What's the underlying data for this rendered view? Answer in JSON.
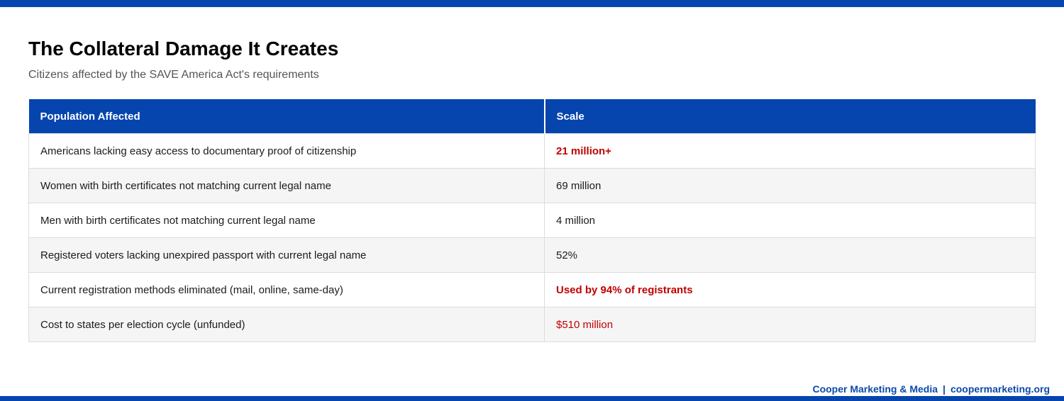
{
  "page": {
    "title": "The Collateral Damage It Creates",
    "subtitle": "Citizens affected by the SAVE America Act's requirements"
  },
  "table": {
    "headers": [
      "Population Affected",
      "Scale"
    ],
    "rows": [
      {
        "label": "Americans lacking easy access to documentary proof of citizenship",
        "value": "21 million+",
        "value_emphasis": "bold-red"
      },
      {
        "label": "Women with birth certificates not matching current legal name",
        "value": "69 million",
        "value_emphasis": "plain"
      },
      {
        "label": "Men with birth certificates not matching current legal name",
        "value": "4 million",
        "value_emphasis": "plain"
      },
      {
        "label": "Registered voters lacking unexpired passport with current legal name",
        "value": "52%",
        "value_emphasis": "plain"
      },
      {
        "label": "Current registration methods eliminated (mail, online, same-day)",
        "value": "Used by 94% of registrants",
        "value_emphasis": "bold-red"
      },
      {
        "label": "Cost to states per election cycle (unfunded)",
        "value": "$510 million",
        "value_emphasis": "red"
      }
    ]
  },
  "footer": {
    "brand": "Cooper Marketing & Media",
    "separator": "|",
    "website": "coopermarketing.org"
  },
  "colors": {
    "accent_blue": "#0645ad",
    "footer_blue": "#0b4aad",
    "alert_red": "#c00000",
    "row_alt_gray": "#f5f5f5",
    "border_gray": "#dcdcdc",
    "subtitle_gray": "#555555"
  }
}
